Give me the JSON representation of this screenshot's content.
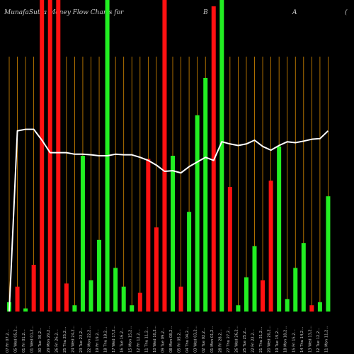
{
  "header": {
    "title": "MunafaSutra Money Flow  Charts for",
    "symbol": "B",
    "extra": "A",
    "paren": "("
  },
  "chart_data": {
    "type": "bar",
    "ylim": [
      0,
      100
    ],
    "bar_colors": {
      "up": "#22ee22",
      "down": "#ff1111"
    },
    "grid_color": "#d98a00",
    "line_color": "#ffffff",
    "categories": [
      "07 Fri 07,2…",
      "05 Wed 05,2…",
      "01 Fri 01,2…",
      "01 Wed 01,2…",
      "30 Tue 30,2…",
      "29 Mon 29,2…",
      "26 Fri 26,2…",
      "25 Thu 25,2…",
      "24 Wed 24,2…",
      "23 Tue 23,2…",
      "22 Mon 22,2…",
      "19 Fri 19,2…",
      "18 Thu 18,2…",
      "17 Wed 17,2…",
      "16 Tue 16,2…",
      "15 Mon 15,2…",
      "12 Fri 12,2…",
      "11 Thu 11,2…",
      "10 Wed 10,2…",
      "09 Tue 09,2…",
      "08 Mon 08,2…",
      "05 Fri 05,2…",
      "04 Thu 04,2…",
      "03 Wed 03,2…",
      "02 Tue 02,2…",
      "01 Mon 01,2…",
      "28 Fri 28,2…",
      "27 Thu 27,2…",
      "26 Wed 26,2…",
      "25 Tue 25,2…",
      "22 Fri 22,2…",
      "21 Thu 21,2…",
      "20 Wed 20,2…",
      "19 Tue 19,2…",
      "18 Mon 18,2…",
      "15 Fri 15,2…",
      "14 Thu 14,2…",
      "13 Wed 13,2…",
      "12 Tue 12,2…",
      "11 Mon 11,2…"
    ],
    "bars": [
      {
        "value": 3,
        "dir": "up"
      },
      {
        "value": 8,
        "dir": "down"
      },
      {
        "value": 1,
        "dir": "up"
      },
      {
        "value": 15,
        "dir": "down"
      },
      {
        "value": 100,
        "dir": "down"
      },
      {
        "value": 100,
        "dir": "down"
      },
      {
        "value": 100,
        "dir": "down"
      },
      {
        "value": 9,
        "dir": "down"
      },
      {
        "value": 2,
        "dir": "up"
      },
      {
        "value": 50,
        "dir": "up"
      },
      {
        "value": 10,
        "dir": "up"
      },
      {
        "value": 23,
        "dir": "up"
      },
      {
        "value": 100,
        "dir": "up"
      },
      {
        "value": 14,
        "dir": "up"
      },
      {
        "value": 8,
        "dir": "up"
      },
      {
        "value": 2,
        "dir": "up"
      },
      {
        "value": 6,
        "dir": "down"
      },
      {
        "value": 49,
        "dir": "down"
      },
      {
        "value": 27,
        "dir": "down"
      },
      {
        "value": 100,
        "dir": "down"
      },
      {
        "value": 50,
        "dir": "up"
      },
      {
        "value": 8,
        "dir": "down"
      },
      {
        "value": 32,
        "dir": "up"
      },
      {
        "value": 63,
        "dir": "up"
      },
      {
        "value": 75,
        "dir": "up"
      },
      {
        "value": 98,
        "dir": "down"
      },
      {
        "value": 100,
        "dir": "up"
      },
      {
        "value": 40,
        "dir": "down"
      },
      {
        "value": 2,
        "dir": "up"
      },
      {
        "value": 11,
        "dir": "up"
      },
      {
        "value": 21,
        "dir": "up"
      },
      {
        "value": 10,
        "dir": "down"
      },
      {
        "value": 42,
        "dir": "down"
      },
      {
        "value": 53,
        "dir": "up"
      },
      {
        "value": 4,
        "dir": "up"
      },
      {
        "value": 14,
        "dir": "up"
      },
      {
        "value": 22,
        "dir": "up"
      },
      {
        "value": 2,
        "dir": "down"
      },
      {
        "value": 3,
        "dir": "up"
      },
      {
        "value": 37,
        "dir": "up"
      }
    ],
    "line": [
      0,
      58,
      58.5,
      58.5,
      55,
      51,
      51,
      51,
      50.5,
      50.5,
      50.3,
      50,
      50,
      50.5,
      50.3,
      50.3,
      49.5,
      48.5,
      47,
      45,
      45.2,
      44.5,
      46.5,
      48,
      49.5,
      48.5,
      54.5,
      53.8,
      53.3,
      53.8,
      55,
      53,
      51.8,
      53.3,
      54.5,
      54.2,
      54.7,
      55.3,
      55.5,
      58
    ]
  }
}
